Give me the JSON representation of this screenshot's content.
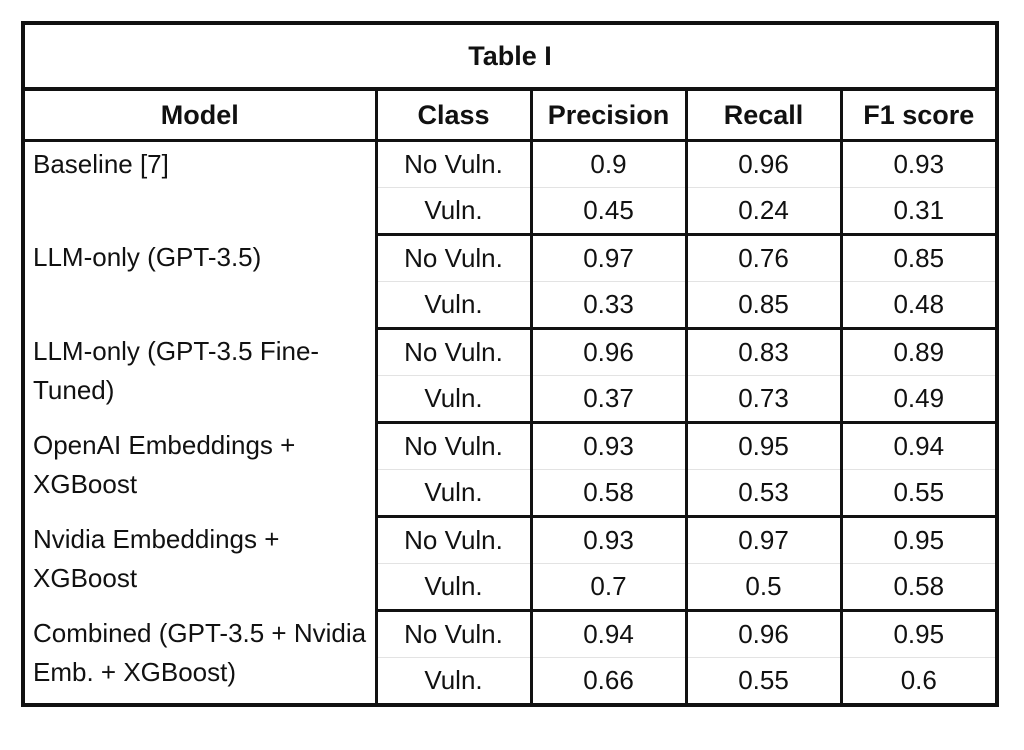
{
  "title": "Table I",
  "columns": [
    "Model",
    "Class",
    "Precision",
    "Recall",
    "F1 score"
  ],
  "groups": [
    {
      "model": "Baseline [7]",
      "rows": [
        {
          "class": "No Vuln.",
          "precision": "0.9",
          "recall": "0.96",
          "f1": "0.93"
        },
        {
          "class": "Vuln.",
          "precision": "0.45",
          "recall": "0.24",
          "f1": "0.31"
        }
      ]
    },
    {
      "model": "LLM-only (GPT-3.5)",
      "rows": [
        {
          "class": "No Vuln.",
          "precision": "0.97",
          "recall": "0.76",
          "f1": "0.85"
        },
        {
          "class": "Vuln.",
          "precision": "0.33",
          "recall": "0.85",
          "f1": "0.48"
        }
      ]
    },
    {
      "model": "LLM-only (GPT-3.5 Fine-Tuned)",
      "rows": [
        {
          "class": "No Vuln.",
          "precision": "0.96",
          "recall": "0.83",
          "f1": "0.89"
        },
        {
          "class": "Vuln.",
          "precision": "0.37",
          "recall": "0.73",
          "f1": "0.49"
        }
      ]
    },
    {
      "model": "OpenAI Embeddings + XGBoost",
      "rows": [
        {
          "class": "No Vuln.",
          "precision": "0.93",
          "recall": "0.95",
          "f1": "0.94"
        },
        {
          "class": "Vuln.",
          "precision": "0.58",
          "recall": "0.53",
          "f1": "0.55"
        }
      ]
    },
    {
      "model": "Nvidia Embeddings + XGBoost",
      "rows": [
        {
          "class": "No Vuln.",
          "precision": "0.93",
          "recall": "0.97",
          "f1": "0.95"
        },
        {
          "class": "Vuln.",
          "precision": "0.7",
          "recall": "0.5",
          "f1": "0.58"
        }
      ]
    },
    {
      "model": "Combined (GPT-3.5 + Nvidia Emb. + XGBoost)",
      "rows": [
        {
          "class": "No Vuln.",
          "precision": "0.94",
          "recall": "0.96",
          "f1": "0.95"
        },
        {
          "class": "Vuln.",
          "precision": "0.66",
          "recall": "0.55",
          "f1": "0.6"
        }
      ]
    }
  ]
}
